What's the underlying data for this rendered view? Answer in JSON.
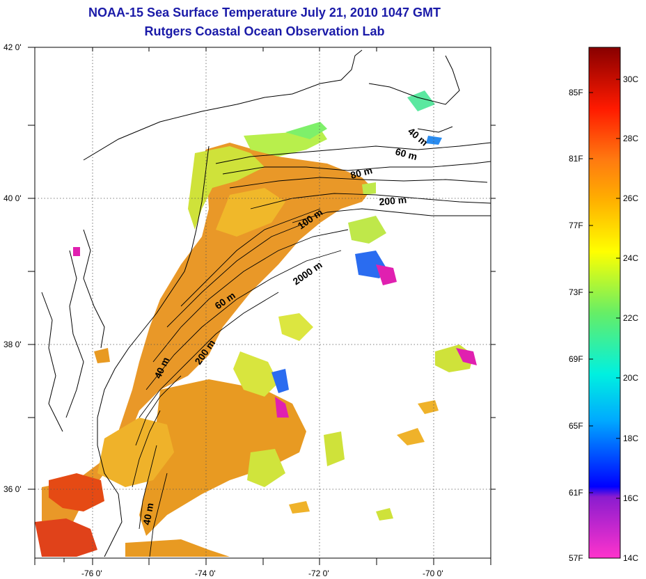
{
  "title": "NOAA-15 Sea Surface Temperature July 21, 2010 1047 GMT",
  "subtitle": "Rutgers Coastal Ocean Observation Lab",
  "lon_ticks": [
    "-76 0'",
    "-74 0'",
    "-72 0'",
    "-70 0'"
  ],
  "lat_ticks": [
    "42 0'",
    "40 0'",
    "38 0'",
    "36 0'"
  ],
  "contours": [
    {
      "label": "40 m",
      "rot": 40
    },
    {
      "label": "60 m",
      "rot": 15
    },
    {
      "label": "80 m",
      "rot": -15
    },
    {
      "label": "200 m",
      "rot": -5
    },
    {
      "label": "100 m",
      "rot": -35
    },
    {
      "label": "2000 m",
      "rot": -35
    },
    {
      "label": "60 m",
      "rot": -35
    },
    {
      "label": "200 m",
      "rot": -55
    },
    {
      "label": "40 m",
      "rot": -65
    },
    {
      "label": "40 m",
      "rot": -80
    }
  ],
  "colorbar": {
    "f_labels": [
      "85F",
      "81F",
      "77F",
      "73F",
      "69F",
      "65F",
      "61F",
      "57F"
    ],
    "c_labels": [
      "30C",
      "28C",
      "26C",
      "24C",
      "22C",
      "20C",
      "18C",
      "16C",
      "14C"
    ]
  },
  "colors": {
    "title": "#1a1aa8",
    "warm": "#e8891a",
    "hot": "#e03a10",
    "mild": "#d9e23c",
    "cool": "#66e870",
    "cold": "#2a6cf0",
    "coldest": "#e020b0"
  }
}
